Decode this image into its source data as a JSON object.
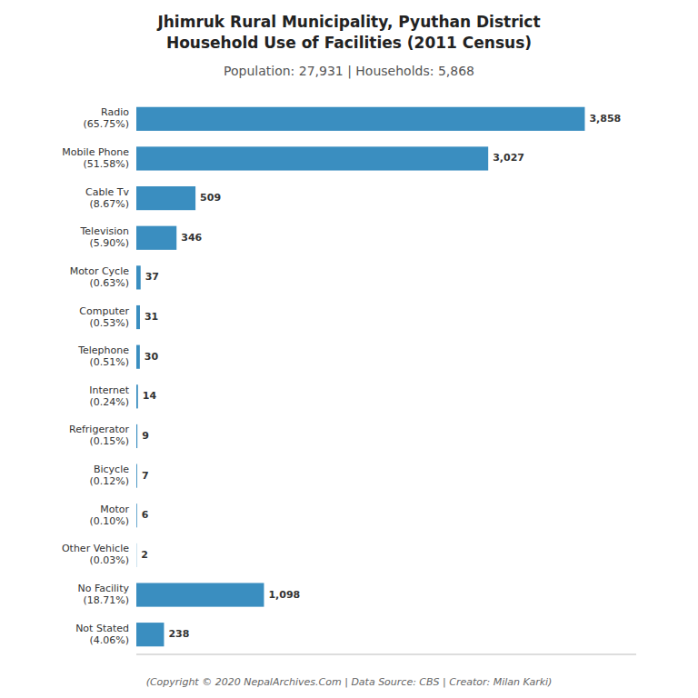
{
  "chart_data": {
    "type": "bar",
    "orientation": "horizontal",
    "title": "Jhimruk Rural Municipality, Pyuthan District\nHousehold Use of Facilities (2011 Census)",
    "subtitle": "Population: 27,931 | Households: 5,868",
    "annotations": [
      "(Copyright © 2020 NepalArchives.Com | Data Source: CBS | Creator: Milan Karki)"
    ],
    "categories": [
      "Not Stated\n(4.06%)",
      "No Facility\n(18.71%)",
      "Other Vehicle\n(0.03%)",
      "Motor\n(0.10%)",
      "Bicycle\n(0.12%)",
      "Refrigerator\n(0.15%)",
      "Internet\n(0.24%)",
      "Telephone\n(0.51%)",
      "Computer\n(0.53%)",
      "Motor Cycle\n(0.63%)",
      "Television\n(5.90%)",
      "Cable Tv\n(8.67%)",
      "Mobile Phone\n(51.58%)",
      "Radio\n(65.75%)"
    ],
    "values": [
      238,
      1098,
      2,
      6,
      7,
      9,
      14,
      30,
      31,
      37,
      346,
      509,
      3027,
      3858
    ],
    "value_labels": [
      "238",
      "1,098",
      "2",
      "6",
      "7",
      "9",
      "14",
      "30",
      "31",
      "37",
      "346",
      "509",
      "3,027",
      "3,858"
    ],
    "data_labels": true,
    "tick_labels": "y",
    "color": "#3a8ec0",
    "xlim": [
      0,
      4300
    ]
  }
}
